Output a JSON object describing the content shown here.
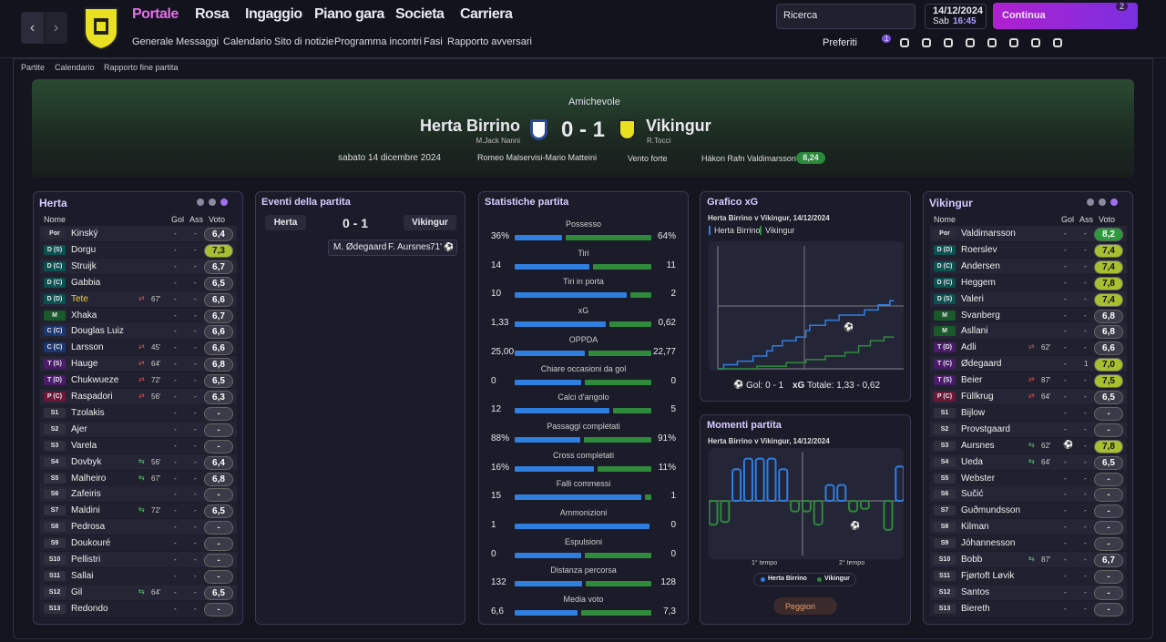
{
  "nav": {
    "menu": [
      "Portale",
      "Rosa",
      "Ingaggio",
      "Piano gara",
      "Societa",
      "Carriera"
    ],
    "submenu": [
      "Generale",
      "Messaggi",
      "Calendario",
      "Sito di notizie",
      "Programma incontri",
      "Fasi",
      "Rapporto avversari"
    ],
    "search": "Ricerca",
    "date": "14/12/2024",
    "weekday": "Sab",
    "time": "16:45",
    "continue": "Continua",
    "continue_badge": "2",
    "favourites": "Preferiti",
    "favourites_badge": "1"
  },
  "breadcrumb": [
    "Partite",
    "Calendario",
    "Rapporto fine partita"
  ],
  "match": {
    "competition": "Amichevole",
    "home": "Herta Birrino",
    "home_manager": "M.Jack Nanni",
    "score": "0 - 1",
    "away": "Vikingur",
    "away_manager": "R.Tocci",
    "date": "sabato 14 dicembre 2024",
    "referees": "Romeo Malservisi-Mario Matteini",
    "weather": "Vento forte",
    "potm": "Hákon Rafn Valdimarsson",
    "potm_rating": "8,24"
  },
  "home_lineup": {
    "title": "Herta",
    "columns": [
      "Nome",
      "Gol",
      "Ass",
      "Voto"
    ],
    "rows": [
      {
        "pos": "Por",
        "name": "Kinský",
        "gol": "-",
        "ass": "-",
        "voto": "6,4"
      },
      {
        "pos": "D (S)",
        "name": "Dorgu",
        "gol": "-",
        "ass": "-",
        "voto": "7,3"
      },
      {
        "pos": "D (C)",
        "name": "Struijk",
        "gol": "-",
        "ass": "-",
        "voto": "6,7"
      },
      {
        "pos": "D (C)",
        "name": "Gabbia",
        "gol": "-",
        "ass": "-",
        "voto": "6,5"
      },
      {
        "pos": "D (D)",
        "name": "Tete",
        "sub": "67'",
        "gol": "-",
        "ass": "-",
        "voto": "6,6"
      },
      {
        "pos": "M",
        "name": "Xhaka",
        "gol": "-",
        "ass": "-",
        "voto": "6,7"
      },
      {
        "pos": "C (C)",
        "name": "Douglas Luiz",
        "gol": "-",
        "ass": "-",
        "voto": "6,6"
      },
      {
        "pos": "C (C)",
        "name": "Larsson",
        "sub": "45'",
        "gol": "-",
        "ass": "-",
        "voto": "6,6"
      },
      {
        "pos": "T (S)",
        "name": "Hauge",
        "sub": "64'",
        "gol": "-",
        "ass": "-",
        "voto": "6,8"
      },
      {
        "pos": "T (D)",
        "name": "Chukwueze",
        "sub": "72'",
        "gol": "-",
        "ass": "-",
        "voto": "6,5"
      },
      {
        "pos": "P (C)",
        "name": "Raspadori",
        "sub": "56'",
        "gol": "-",
        "ass": "-",
        "voto": "6,3"
      },
      {
        "pos": "S1",
        "name": "Tzolakis",
        "gol": "-",
        "ass": "-",
        "voto": "-"
      },
      {
        "pos": "S2",
        "name": "Ajer",
        "gol": "-",
        "ass": "-",
        "voto": "-"
      },
      {
        "pos": "S3",
        "name": "Varela",
        "gol": "-",
        "ass": "-",
        "voto": "-"
      },
      {
        "pos": "S4",
        "name": "Dovbyk",
        "sub": "56'",
        "gol": "-",
        "ass": "-",
        "voto": "6,4"
      },
      {
        "pos": "S5",
        "name": "Malheiro",
        "sub": "67'",
        "gol": "-",
        "ass": "-",
        "voto": "6,8"
      },
      {
        "pos": "S6",
        "name": "Zafeiris",
        "gol": "-",
        "ass": "-",
        "voto": "-"
      },
      {
        "pos": "S7",
        "name": "Maldini",
        "sub": "72'",
        "gol": "-",
        "ass": "-",
        "voto": "6,5"
      },
      {
        "pos": "S8",
        "name": "Pedrosa",
        "gol": "-",
        "ass": "-",
        "voto": "-"
      },
      {
        "pos": "S9",
        "name": "Doukouré",
        "gol": "-",
        "ass": "-",
        "voto": "-"
      },
      {
        "pos": "S10",
        "name": "Pellistri",
        "gol": "-",
        "ass": "-",
        "voto": "-"
      },
      {
        "pos": "S11",
        "name": "Sallai",
        "gol": "-",
        "ass": "-",
        "voto": "-"
      },
      {
        "pos": "S12",
        "name": "Gil",
        "sub": "64'",
        "gol": "-",
        "ass": "-",
        "voto": "6,5"
      },
      {
        "pos": "S13",
        "name": "Redondo",
        "gol": "-",
        "ass": "-",
        "voto": "-"
      }
    ]
  },
  "away_lineup": {
    "title": "Vikingur",
    "columns": [
      "Nome",
      "Gol",
      "Ass",
      "Voto"
    ],
    "rows": [
      {
        "pos": "Por",
        "name": "Valdimarsson",
        "gol": "-",
        "ass": "-",
        "voto": "8,2"
      },
      {
        "pos": "D (D)",
        "name": "Roerslev",
        "gol": "-",
        "ass": "-",
        "voto": "7,4"
      },
      {
        "pos": "D (C)",
        "name": "Andersen",
        "gol": "-",
        "ass": "-",
        "voto": "7,4"
      },
      {
        "pos": "D (C)",
        "name": "Heggem",
        "gol": "-",
        "ass": "-",
        "voto": "7,8"
      },
      {
        "pos": "D (S)",
        "name": "Valeri",
        "gol": "-",
        "ass": "-",
        "voto": "7,4"
      },
      {
        "pos": "M",
        "name": "Svanberg",
        "gol": "-",
        "ass": "-",
        "voto": "6,8"
      },
      {
        "pos": "M",
        "name": "Asllani",
        "gol": "-",
        "ass": "-",
        "voto": "6,8"
      },
      {
        "pos": "T (D)",
        "name": "Adli",
        "sub": "62'",
        "gol": "-",
        "ass": "-",
        "voto": "6,6"
      },
      {
        "pos": "T (C)",
        "name": "Ødegaard",
        "gol": "-",
        "ass": "1",
        "voto": "7,0"
      },
      {
        "pos": "T (S)",
        "name": "Beier",
        "sub": "87'",
        "gol": "-",
        "ass": "-",
        "voto": "7,5"
      },
      {
        "pos": "P (C)",
        "name": "Füllkrug",
        "sub": "64'",
        "gol": "-",
        "ass": "-",
        "voto": "6,5"
      },
      {
        "pos": "S1",
        "name": "Bijlow",
        "gol": "-",
        "ass": "-",
        "voto": "-"
      },
      {
        "pos": "S2",
        "name": "Provstgaard",
        "gol": "-",
        "ass": "-",
        "voto": "-"
      },
      {
        "pos": "S3",
        "name": "Aursnes",
        "sub": "62'",
        "goal": true,
        "ass": "-",
        "voto": "7,8"
      },
      {
        "pos": "S4",
        "name": "Ueda",
        "sub": "64'",
        "gol": "-",
        "ass": "-",
        "voto": "6,5"
      },
      {
        "pos": "S5",
        "name": "Webster",
        "gol": "-",
        "ass": "-",
        "voto": "-"
      },
      {
        "pos": "S6",
        "name": "Sučić",
        "gol": "-",
        "ass": "-",
        "voto": "-"
      },
      {
        "pos": "S7",
        "name": "Guðmundsson",
        "gol": "-",
        "ass": "-",
        "voto": "-"
      },
      {
        "pos": "S8",
        "name": "Kilman",
        "gol": "-",
        "ass": "-",
        "voto": "-"
      },
      {
        "pos": "S9",
        "name": "Jóhannesson",
        "gol": "-",
        "ass": "-",
        "voto": "-"
      },
      {
        "pos": "S10",
        "name": "Bobb",
        "sub": "87'",
        "gol": "-",
        "ass": "-",
        "voto": "6,7"
      },
      {
        "pos": "S11",
        "name": "Fjørtoft Løvik",
        "gol": "-",
        "ass": "-",
        "voto": "-"
      },
      {
        "pos": "S12",
        "name": "Santos",
        "gol": "-",
        "ass": "-",
        "voto": "-"
      },
      {
        "pos": "S13",
        "name": "Biereth",
        "gol": "-",
        "ass": "-",
        "voto": "-"
      }
    ]
  },
  "events": {
    "title": "Eventi della partita",
    "home": "Herta",
    "score": "0 - 1",
    "away": "Vikingur",
    "items": [
      {
        "assist": "M. Ødegaard",
        "scorer": "F. Aursnes",
        "minute": "71'"
      }
    ]
  },
  "stats": {
    "title": "Statistiche partita",
    "colors": [
      "#2f7fe0",
      "#2f8a3c"
    ],
    "items": [
      {
        "label": "Possesso",
        "values": [
          36,
          64
        ],
        "value_labels": [
          "36%",
          "64%"
        ]
      },
      {
        "label": "Tiri",
        "values": [
          14,
          11
        ]
      },
      {
        "label": "Tiri in porta",
        "values": [
          10,
          2
        ]
      },
      {
        "label": "xG",
        "values": [
          1.33,
          0.62
        ],
        "value_labels": [
          "1,33",
          "0,62"
        ]
      },
      {
        "label": "OPPDA",
        "values": [
          25.0,
          22.77
        ],
        "value_labels": [
          "25,00",
          "22,77"
        ]
      },
      {
        "label": "Chiare occasioni da gol",
        "values": [
          0,
          0
        ]
      },
      {
        "label": "Calci d'angolo",
        "values": [
          12,
          5
        ]
      },
      {
        "label": "Passaggi completati",
        "values": [
          88,
          91
        ],
        "value_labels": [
          "88%",
          "91%"
        ]
      },
      {
        "label": "Cross completati",
        "values": [
          16,
          11
        ],
        "value_labels": [
          "16%",
          "11%"
        ]
      },
      {
        "label": "Falli commessi",
        "values": [
          15,
          1
        ]
      },
      {
        "label": "Ammonizioni",
        "values": [
          1,
          0
        ]
      },
      {
        "label": "Espulsioni",
        "values": [
          0,
          0
        ]
      },
      {
        "label": "Distanza percorsa",
        "values": [
          132,
          128
        ]
      },
      {
        "label": "Media voto",
        "values": [
          6.6,
          7.3
        ],
        "value_labels": [
          "6,6",
          "7,3"
        ]
      }
    ]
  },
  "chart_data": [
    {
      "type": "line",
      "title": "Grafico xG",
      "subtitle": "Herta Birrino v Vikingur, 14/12/2024",
      "xlim": [
        0,
        95
      ],
      "ylim": [
        0,
        2.4
      ],
      "series": [
        {
          "name": "Herta Birrino",
          "color": "#2f7fe0",
          "x": [
            0,
            3,
            10,
            18,
            25,
            28,
            33,
            40,
            45,
            47,
            55,
            62,
            75,
            82,
            88,
            90
          ],
          "values": [
            0,
            0.08,
            0.15,
            0.25,
            0.35,
            0.45,
            0.55,
            0.62,
            0.75,
            0.85,
            0.95,
            1.05,
            1.15,
            1.25,
            1.33,
            1.33
          ]
        },
        {
          "name": "Vikingur",
          "color": "#2f8a3c",
          "x": [
            0,
            20,
            35,
            45,
            55,
            65,
            72,
            78,
            85,
            90
          ],
          "values": [
            0,
            0.05,
            0.12,
            0.18,
            0.25,
            0.32,
            0.45,
            0.55,
            0.62,
            0.62
          ]
        }
      ],
      "goals_label": "Gol: 0 - 1",
      "xg_label": "xG",
      "total_label": "Totale: 1,33 - 0,62"
    },
    {
      "type": "bar",
      "title": "Momenti partita",
      "subtitle": "Herta Birrino v Vikingur, 14/12/2024",
      "ylim": [
        -10,
        10
      ],
      "halves": [
        "1° tempo",
        "2° tempo"
      ],
      "series": [
        {
          "name": "Herta Birrino",
          "color": "#2f7fe0",
          "values": [
            0,
            0,
            6,
            8,
            8,
            8,
            6,
            0,
            0,
            0,
            3,
            3,
            0,
            0,
            0,
            0,
            6.5
          ]
        },
        {
          "name": "Vikingur",
          "color": "#2f8a3c",
          "values": [
            -4.5,
            -4,
            0,
            0,
            0,
            0,
            0,
            -2,
            -2,
            -4.5,
            0,
            0,
            -2,
            -1.5,
            0,
            -5.5,
            0
          ]
        }
      ],
      "button": "Peggiori"
    }
  ]
}
